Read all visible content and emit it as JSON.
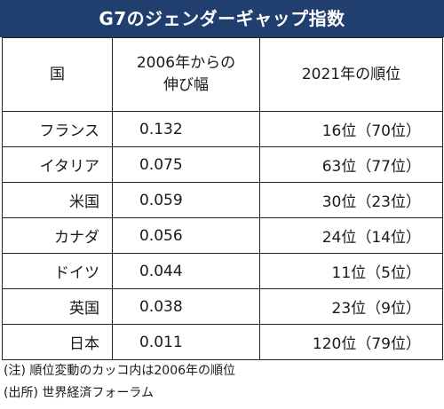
{
  "title": "G7のジェンダーギャップ指数",
  "table": {
    "headers": {
      "country": "国",
      "growth_line1": "2006年からの",
      "growth_line2": "伸び幅",
      "rank": "2021年の順位"
    },
    "rows": [
      {
        "country": "フランス",
        "growth": "0.132",
        "rank": "16位（70位）"
      },
      {
        "country": "イタリア",
        "growth": "0.075",
        "rank": "63位（77位）"
      },
      {
        "country": "米国",
        "growth": "0.059",
        "rank": "30位（23位）"
      },
      {
        "country": "カナダ",
        "growth": "0.056",
        "rank": "24位（14位）"
      },
      {
        "country": "ドイツ",
        "growth": "0.044",
        "rank": "11位（5位）"
      },
      {
        "country": "英国",
        "growth": "0.038",
        "rank": "23位（9位）"
      },
      {
        "country": "日本",
        "growth": "0.011",
        "rank": "120位（79位）"
      }
    ]
  },
  "notes": {
    "note": "(注) 順位変動のカッコ内は2006年の順位",
    "source": "(出所) 世界経済フォーラム"
  }
}
